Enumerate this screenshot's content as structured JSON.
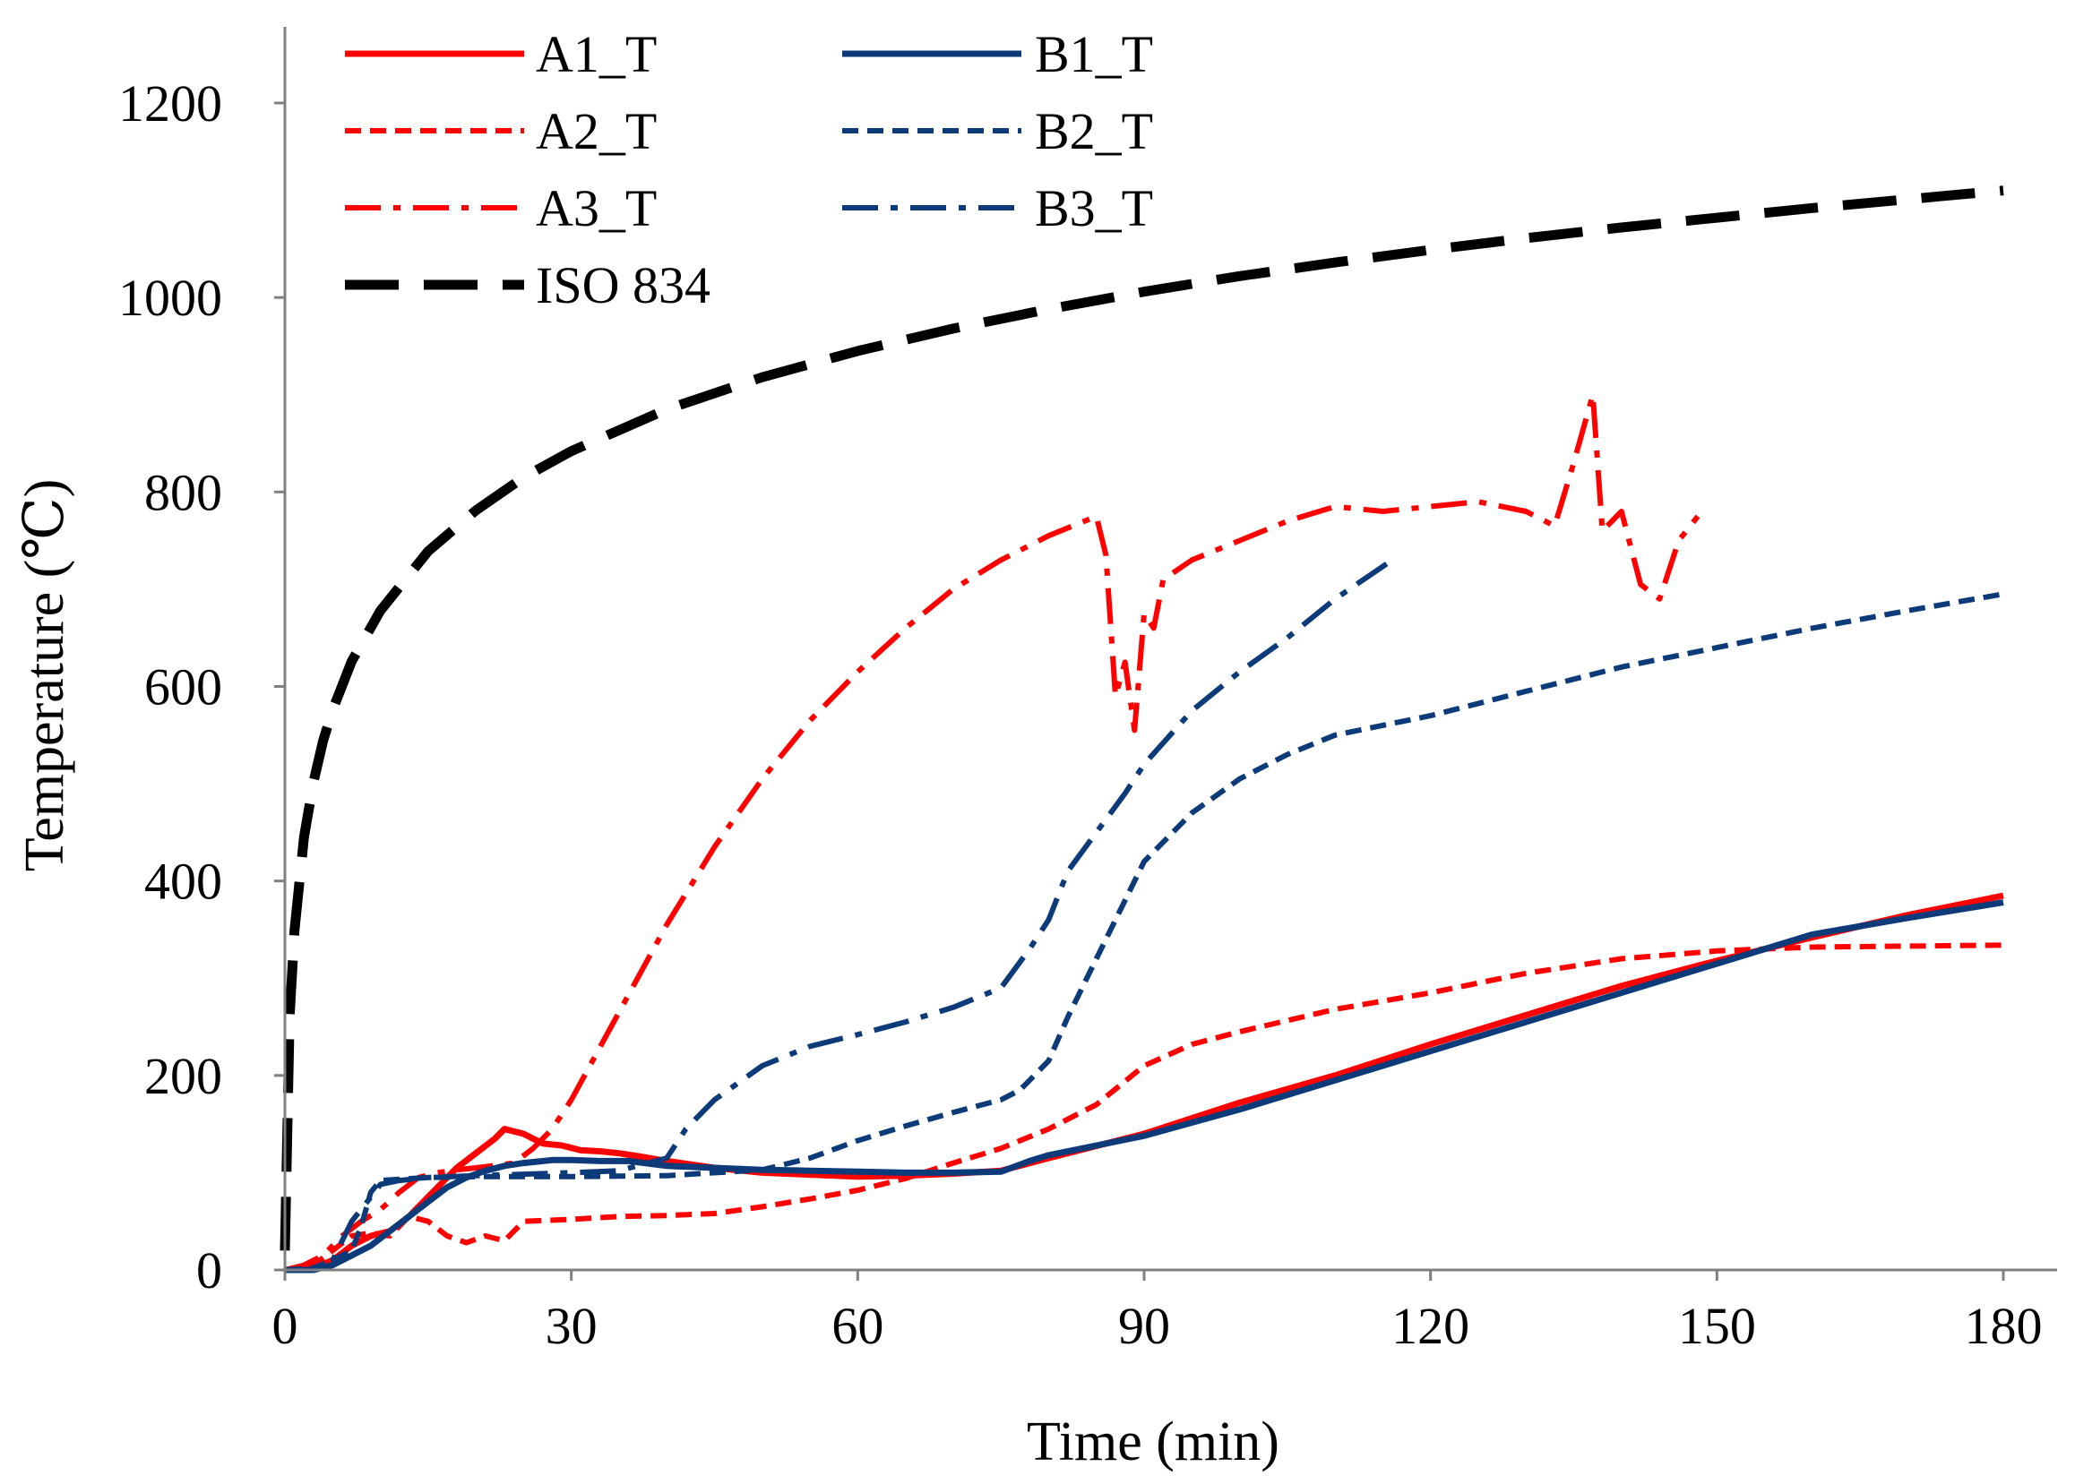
{
  "chart_data": {
    "type": "line",
    "title": "",
    "xlabel": "Time (min)",
    "ylabel": "Temperature (℃)",
    "xlim": [
      0,
      185
    ],
    "ylim": [
      0,
      1250
    ],
    "x_ticks": [
      0,
      30,
      60,
      90,
      120,
      150,
      180
    ],
    "x_tick_labels": [
      "0",
      "30",
      "60",
      "90",
      "120",
      "150",
      "180"
    ],
    "y_ticks": [
      0,
      200,
      400,
      600,
      800,
      1000,
      1200
    ],
    "y_tick_labels": [
      "0",
      "200",
      "400",
      "600",
      "800",
      "1000",
      "1200"
    ],
    "grid": false,
    "legend_position": "top-left",
    "series": [
      {
        "name": "A1_T",
        "color": "#ff0000",
        "dash": "solid",
        "points": [
          [
            0,
            0
          ],
          [
            3,
            2
          ],
          [
            5,
            10
          ],
          [
            7,
            25
          ],
          [
            9,
            35
          ],
          [
            11,
            40
          ],
          [
            13,
            55
          ],
          [
            15,
            75
          ],
          [
            17,
            95
          ],
          [
            18,
            105
          ],
          [
            20,
            120
          ],
          [
            22,
            135
          ],
          [
            23,
            145
          ],
          [
            25,
            140
          ],
          [
            27,
            130
          ],
          [
            29,
            128
          ],
          [
            31,
            123
          ],
          [
            33,
            122
          ],
          [
            35,
            120
          ],
          [
            37,
            117
          ],
          [
            40,
            112
          ],
          [
            45,
            105
          ],
          [
            50,
            100
          ],
          [
            55,
            98
          ],
          [
            60,
            96
          ],
          [
            65,
            97
          ],
          [
            70,
            99
          ],
          [
            75,
            102
          ],
          [
            80,
            115
          ],
          [
            90,
            140
          ],
          [
            100,
            172
          ],
          [
            110,
            200
          ],
          [
            120,
            232
          ],
          [
            130,
            262
          ],
          [
            140,
            292
          ],
          [
            150,
            318
          ],
          [
            160,
            342
          ],
          [
            170,
            365
          ],
          [
            180,
            385
          ]
        ]
      },
      {
        "name": "A2_T",
        "color": "#ff0000",
        "dash": "dashed",
        "points": [
          [
            0,
            0
          ],
          [
            3,
            5
          ],
          [
            5,
            20
          ],
          [
            7,
            35
          ],
          [
            9,
            38
          ],
          [
            11,
            35
          ],
          [
            13,
            55
          ],
          [
            15,
            50
          ],
          [
            17,
            35
          ],
          [
            19,
            28
          ],
          [
            21,
            35
          ],
          [
            23,
            30
          ],
          [
            25,
            50
          ],
          [
            30,
            52
          ],
          [
            35,
            55
          ],
          [
            40,
            56
          ],
          [
            45,
            58
          ],
          [
            50,
            65
          ],
          [
            55,
            73
          ],
          [
            60,
            82
          ],
          [
            65,
            94
          ],
          [
            70,
            110
          ],
          [
            75,
            125
          ],
          [
            80,
            145
          ],
          [
            85,
            170
          ],
          [
            90,
            210
          ],
          [
            95,
            232
          ],
          [
            100,
            245
          ],
          [
            110,
            268
          ],
          [
            120,
            285
          ],
          [
            130,
            305
          ],
          [
            140,
            320
          ],
          [
            150,
            328
          ],
          [
            160,
            332
          ],
          [
            170,
            333
          ],
          [
            180,
            334
          ]
        ]
      },
      {
        "name": "A3_T",
        "color": "#ff0000",
        "dash": "dashdot",
        "points": [
          [
            0,
            0
          ],
          [
            2,
            5
          ],
          [
            4,
            15
          ],
          [
            6,
            35
          ],
          [
            8,
            50
          ],
          [
            10,
            62
          ],
          [
            12,
            80
          ],
          [
            14,
            95
          ],
          [
            16,
            100
          ],
          [
            18,
            103
          ],
          [
            20,
            105
          ],
          [
            24,
            110
          ],
          [
            26,
            125
          ],
          [
            28,
            145
          ],
          [
            30,
            175
          ],
          [
            35,
            265
          ],
          [
            40,
            355
          ],
          [
            45,
            435
          ],
          [
            50,
            505
          ],
          [
            55,
            565
          ],
          [
            60,
            615
          ],
          [
            65,
            660
          ],
          [
            70,
            700
          ],
          [
            75,
            730
          ],
          [
            80,
            755
          ],
          [
            85,
            775
          ],
          [
            86,
            735
          ],
          [
            87,
            590
          ],
          [
            88,
            625
          ],
          [
            89,
            555
          ],
          [
            90,
            675
          ],
          [
            91,
            660
          ],
          [
            92,
            710
          ],
          [
            95,
            730
          ],
          [
            100,
            750
          ],
          [
            105,
            770
          ],
          [
            110,
            785
          ],
          [
            115,
            780
          ],
          [
            120,
            785
          ],
          [
            125,
            790
          ],
          [
            130,
            780
          ],
          [
            133,
            765
          ],
          [
            135,
            830
          ],
          [
            137,
            900
          ],
          [
            138,
            760
          ],
          [
            140,
            780
          ],
          [
            142,
            705
          ],
          [
            144,
            690
          ],
          [
            146,
            750
          ],
          [
            148,
            775
          ]
        ]
      },
      {
        "name": "B1_T",
        "color": "#0d3b7a",
        "dash": "solid",
        "points": [
          [
            0,
            0
          ],
          [
            3,
            0
          ],
          [
            5,
            5
          ],
          [
            7,
            15
          ],
          [
            9,
            25
          ],
          [
            11,
            40
          ],
          [
            13,
            55
          ],
          [
            15,
            70
          ],
          [
            17,
            85
          ],
          [
            19,
            95
          ],
          [
            21,
            102
          ],
          [
            23,
            107
          ],
          [
            25,
            110
          ],
          [
            28,
            113
          ],
          [
            30,
            113
          ],
          [
            33,
            112
          ],
          [
            36,
            112
          ],
          [
            40,
            107
          ],
          [
            45,
            105
          ],
          [
            50,
            103
          ],
          [
            55,
            102
          ],
          [
            60,
            101
          ],
          [
            65,
            100
          ],
          [
            70,
            100
          ],
          [
            75,
            101
          ],
          [
            78,
            112
          ],
          [
            80,
            118
          ],
          [
            90,
            138
          ],
          [
            100,
            165
          ],
          [
            110,
            195
          ],
          [
            120,
            225
          ],
          [
            130,
            255
          ],
          [
            140,
            285
          ],
          [
            150,
            315
          ],
          [
            160,
            345
          ],
          [
            170,
            362
          ],
          [
            180,
            378
          ]
        ]
      },
      {
        "name": "B2_T",
        "color": "#0d3b7a",
        "dash": "dashed",
        "points": [
          [
            0,
            0
          ],
          [
            3,
            2
          ],
          [
            5,
            10
          ],
          [
            7,
            20
          ],
          [
            8,
            45
          ],
          [
            9,
            80
          ],
          [
            10,
            92
          ],
          [
            15,
            95
          ],
          [
            20,
            96
          ],
          [
            30,
            96
          ],
          [
            40,
            97
          ],
          [
            50,
            103
          ],
          [
            55,
            115
          ],
          [
            60,
            133
          ],
          [
            65,
            148
          ],
          [
            70,
            162
          ],
          [
            75,
            175
          ],
          [
            77,
            185
          ],
          [
            80,
            215
          ],
          [
            82,
            260
          ],
          [
            85,
            320
          ],
          [
            88,
            380
          ],
          [
            90,
            420
          ],
          [
            95,
            470
          ],
          [
            100,
            505
          ],
          [
            105,
            530
          ],
          [
            110,
            550
          ],
          [
            120,
            570
          ],
          [
            130,
            595
          ],
          [
            140,
            620
          ],
          [
            150,
            640
          ],
          [
            160,
            660
          ],
          [
            170,
            678
          ],
          [
            180,
            695
          ]
        ]
      },
      {
        "name": "B3_T",
        "color": "#0d3b7a",
        "dash": "dashdot",
        "points": [
          [
            0,
            0
          ],
          [
            3,
            0
          ],
          [
            5,
            10
          ],
          [
            7,
            50
          ],
          [
            9,
            75
          ],
          [
            10,
            88
          ],
          [
            12,
            92
          ],
          [
            15,
            95
          ],
          [
            20,
            97
          ],
          [
            30,
            100
          ],
          [
            35,
            102
          ],
          [
            40,
            115
          ],
          [
            42,
            145
          ],
          [
            45,
            175
          ],
          [
            50,
            210
          ],
          [
            55,
            230
          ],
          [
            60,
            242
          ],
          [
            65,
            255
          ],
          [
            70,
            270
          ],
          [
            75,
            290
          ],
          [
            78,
            330
          ],
          [
            80,
            360
          ],
          [
            82,
            410
          ],
          [
            85,
            450
          ],
          [
            88,
            490
          ],
          [
            90,
            520
          ],
          [
            95,
            575
          ],
          [
            100,
            615
          ],
          [
            105,
            650
          ],
          [
            110,
            690
          ],
          [
            116,
            730
          ]
        ]
      },
      {
        "name": "ISO 834",
        "color": "#000000",
        "dash": "longdash",
        "points": [
          [
            0,
            20
          ],
          [
            0.5,
            261
          ],
          [
            1,
            349
          ],
          [
            2,
            445
          ],
          [
            3,
            502
          ],
          [
            4,
            544
          ],
          [
            5,
            576
          ],
          [
            7,
            626
          ],
          [
            10,
            678
          ],
          [
            15,
            739
          ],
          [
            20,
            781
          ],
          [
            25,
            815
          ],
          [
            30,
            842
          ],
          [
            40,
            885
          ],
          [
            50,
            918
          ],
          [
            60,
            945
          ],
          [
            70,
            968
          ],
          [
            80,
            988
          ],
          [
            90,
            1006
          ],
          [
            100,
            1022
          ],
          [
            110,
            1036
          ],
          [
            120,
            1049
          ],
          [
            130,
            1061
          ],
          [
            140,
            1072
          ],
          [
            150,
            1082
          ],
          [
            160,
            1092
          ],
          [
            170,
            1101
          ],
          [
            180,
            1110
          ]
        ]
      }
    ]
  }
}
